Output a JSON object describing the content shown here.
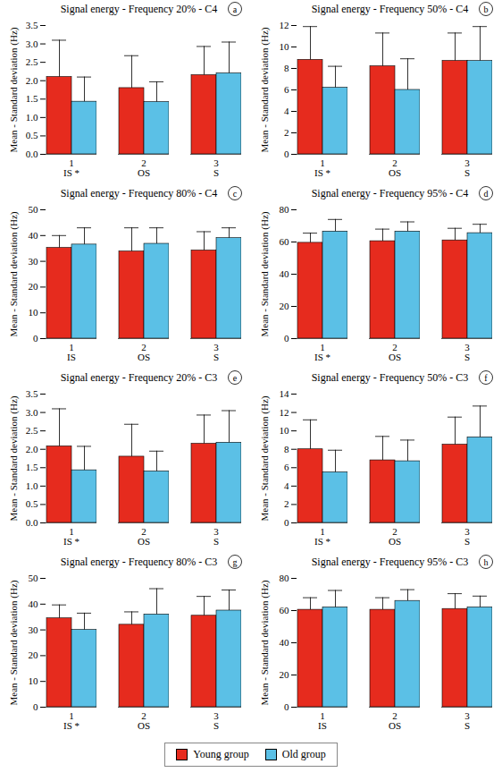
{
  "chart_data": [
    {
      "type": "bar",
      "title": "Signal energy - Frequency 20% - C4",
      "panel_label": "a",
      "y_label": "Mean - Standard deviation (Hz)",
      "legend": "bottom",
      "categories": [
        "1\nIS *",
        "2\nOS",
        "3\nS"
      ],
      "series": [
        {
          "name": "Young group",
          "color": "#e62b1e",
          "values": [
            2.1,
            1.8,
            2.15
          ],
          "errors": [
            1.0,
            0.88,
            0.78
          ]
        },
        {
          "name": "Old group",
          "color": "#5bc0e6",
          "values": [
            1.43,
            1.42,
            2.2
          ],
          "errors": [
            0.67,
            0.55,
            0.85
          ]
        }
      ],
      "ylim": [
        0,
        3.5
      ],
      "yticks": [
        {
          "value": 0,
          "label": "0.0"
        },
        0.5,
        {
          "value": 1,
          "label": "1.0"
        },
        1.5,
        {
          "value": 2,
          "label": "2.0"
        },
        2.5,
        {
          "value": 3,
          "label": "3.0"
        },
        3.5
      ]
    },
    {
      "type": "bar",
      "title": "Signal energy - Frequency 50% - C4",
      "panel_label": "b",
      "y_label": "Mean - Standard deviation (Hz)",
      "legend": "bottom",
      "categories": [
        "1\nIS *",
        "2\nOS",
        "3\nS"
      ],
      "series": [
        {
          "name": "Young group",
          "color": "#e62b1e",
          "values": [
            8.8,
            8.2,
            8.7
          ],
          "errors": [
            3.1,
            3.1,
            2.6
          ]
        },
        {
          "name": "Old group",
          "color": "#5bc0e6",
          "values": [
            6.2,
            6.0,
            8.7
          ],
          "errors": [
            2.0,
            2.9,
            3.2
          ]
        }
      ],
      "ylim": [
        0,
        12
      ],
      "yticks": [
        0,
        2,
        4,
        6,
        8,
        10,
        12
      ]
    },
    {
      "type": "bar",
      "title": "Signal energy - Frequency 80% - C4",
      "panel_label": "c",
      "y_label": "Mean - Standard deviation (Hz)",
      "legend": "bottom",
      "categories": [
        "1\nIS",
        "2\nOS",
        "3\nS"
      ],
      "series": [
        {
          "name": "Young group",
          "color": "#e62b1e",
          "values": [
            35.2,
            33.8,
            34.2
          ],
          "errors": [
            4.8,
            9.2,
            7.3
          ]
        },
        {
          "name": "Old group",
          "color": "#5bc0e6",
          "values": [
            36.5,
            36.8,
            39
          ],
          "errors": [
            6.5,
            6.2,
            4
          ]
        }
      ],
      "ylim": [
        0,
        50
      ],
      "yticks": [
        0,
        10,
        20,
        30,
        40,
        50
      ]
    },
    {
      "type": "bar",
      "title": "Signal energy - Frequency 95% - C4",
      "panel_label": "d",
      "y_label": "Mean - Standard deviation (Hz)",
      "legend": "bottom",
      "categories": [
        "1\nIS *",
        "2\nOS",
        "3\nS"
      ],
      "series": [
        {
          "name": "Young group",
          "color": "#e62b1e",
          "values": [
            59.5,
            60.5,
            61
          ],
          "errors": [
            6,
            7.5,
            7.5
          ]
        },
        {
          "name": "Old group",
          "color": "#5bc0e6",
          "values": [
            66.5,
            66.5,
            65.5
          ],
          "errors": [
            7.5,
            6,
            5.5
          ]
        }
      ],
      "ylim": [
        0,
        80
      ],
      "yticks": [
        0,
        20,
        40,
        60,
        80
      ]
    },
    {
      "type": "bar",
      "title": "Signal energy - Frequency 20% - C3",
      "panel_label": "e",
      "y_label": "Mean - Standard deviation (Hz)",
      "legend": "bottom",
      "categories": [
        "1\nIS *",
        "2\nOS",
        "3\nS"
      ],
      "series": [
        {
          "name": "Young group",
          "color": "#e62b1e",
          "values": [
            2.08,
            1.8,
            2.15
          ],
          "errors": [
            1.02,
            0.88,
            0.78
          ]
        },
        {
          "name": "Old group",
          "color": "#5bc0e6",
          "values": [
            1.43,
            1.4,
            2.18
          ],
          "errors": [
            0.65,
            0.55,
            0.87
          ]
        }
      ],
      "ylim": [
        0,
        3.5
      ],
      "yticks": [
        {
          "value": 0,
          "label": "0.0"
        },
        0.5,
        {
          "value": 1,
          "label": "1.0"
        },
        1.5,
        {
          "value": 2,
          "label": "2.0"
        },
        2.5,
        {
          "value": 3,
          "label": "3.0"
        },
        3.5
      ]
    },
    {
      "type": "bar",
      "title": "Signal energy - Frequency 50% - C3",
      "panel_label": "f",
      "y_label": "Mean - Standard deviation (Hz)",
      "legend": "bottom",
      "categories": [
        "1\nIS *",
        "2\nOS",
        "3\nS"
      ],
      "series": [
        {
          "name": "Young group",
          "color": "#e62b1e",
          "values": [
            8.0,
            6.8,
            8.5
          ],
          "errors": [
            3.2,
            2.6,
            3.0
          ]
        },
        {
          "name": "Old group",
          "color": "#5bc0e6",
          "values": [
            5.5,
            6.7,
            9.3
          ],
          "errors": [
            2.4,
            2.3,
            3.4
          ]
        }
      ],
      "ylim": [
        0,
        14
      ],
      "yticks": [
        0,
        2,
        4,
        6,
        8,
        10,
        12,
        14
      ]
    },
    {
      "type": "bar",
      "title": "Signal energy - Frequency 80% - C3",
      "panel_label": "g",
      "y_label": "Mean - Standard deviation (Hz)",
      "legend": "bottom",
      "categories": [
        "1\nIS *",
        "2\nOS",
        "3\nS"
      ],
      "series": [
        {
          "name": "Young group",
          "color": "#e62b1e",
          "values": [
            34.5,
            32,
            35.5
          ],
          "errors": [
            5.2,
            5,
            7.5
          ]
        },
        {
          "name": "Old group",
          "color": "#5bc0e6",
          "values": [
            30,
            36,
            37.5
          ],
          "errors": [
            6.5,
            10,
            8
          ]
        }
      ],
      "ylim": [
        0,
        50
      ],
      "yticks": [
        0,
        10,
        20,
        30,
        40,
        50
      ]
    },
    {
      "type": "bar",
      "title": "Signal energy - Frequency 95% - C3",
      "panel_label": "h",
      "y_label": "Mean - Standard deviation (Hz)",
      "legend": "bottom",
      "categories": [
        "1\nIS",
        "2\nOS",
        "3\nS"
      ],
      "series": [
        {
          "name": "Young group",
          "color": "#e62b1e",
          "values": [
            60.5,
            60.5,
            61
          ],
          "errors": [
            7.5,
            7.5,
            9.5
          ]
        },
        {
          "name": "Old group",
          "color": "#5bc0e6",
          "values": [
            62,
            66,
            62
          ],
          "errors": [
            10.5,
            7,
            7
          ]
        }
      ],
      "ylim": [
        0,
        80
      ],
      "yticks": [
        0,
        20,
        40,
        60,
        80
      ]
    }
  ]
}
